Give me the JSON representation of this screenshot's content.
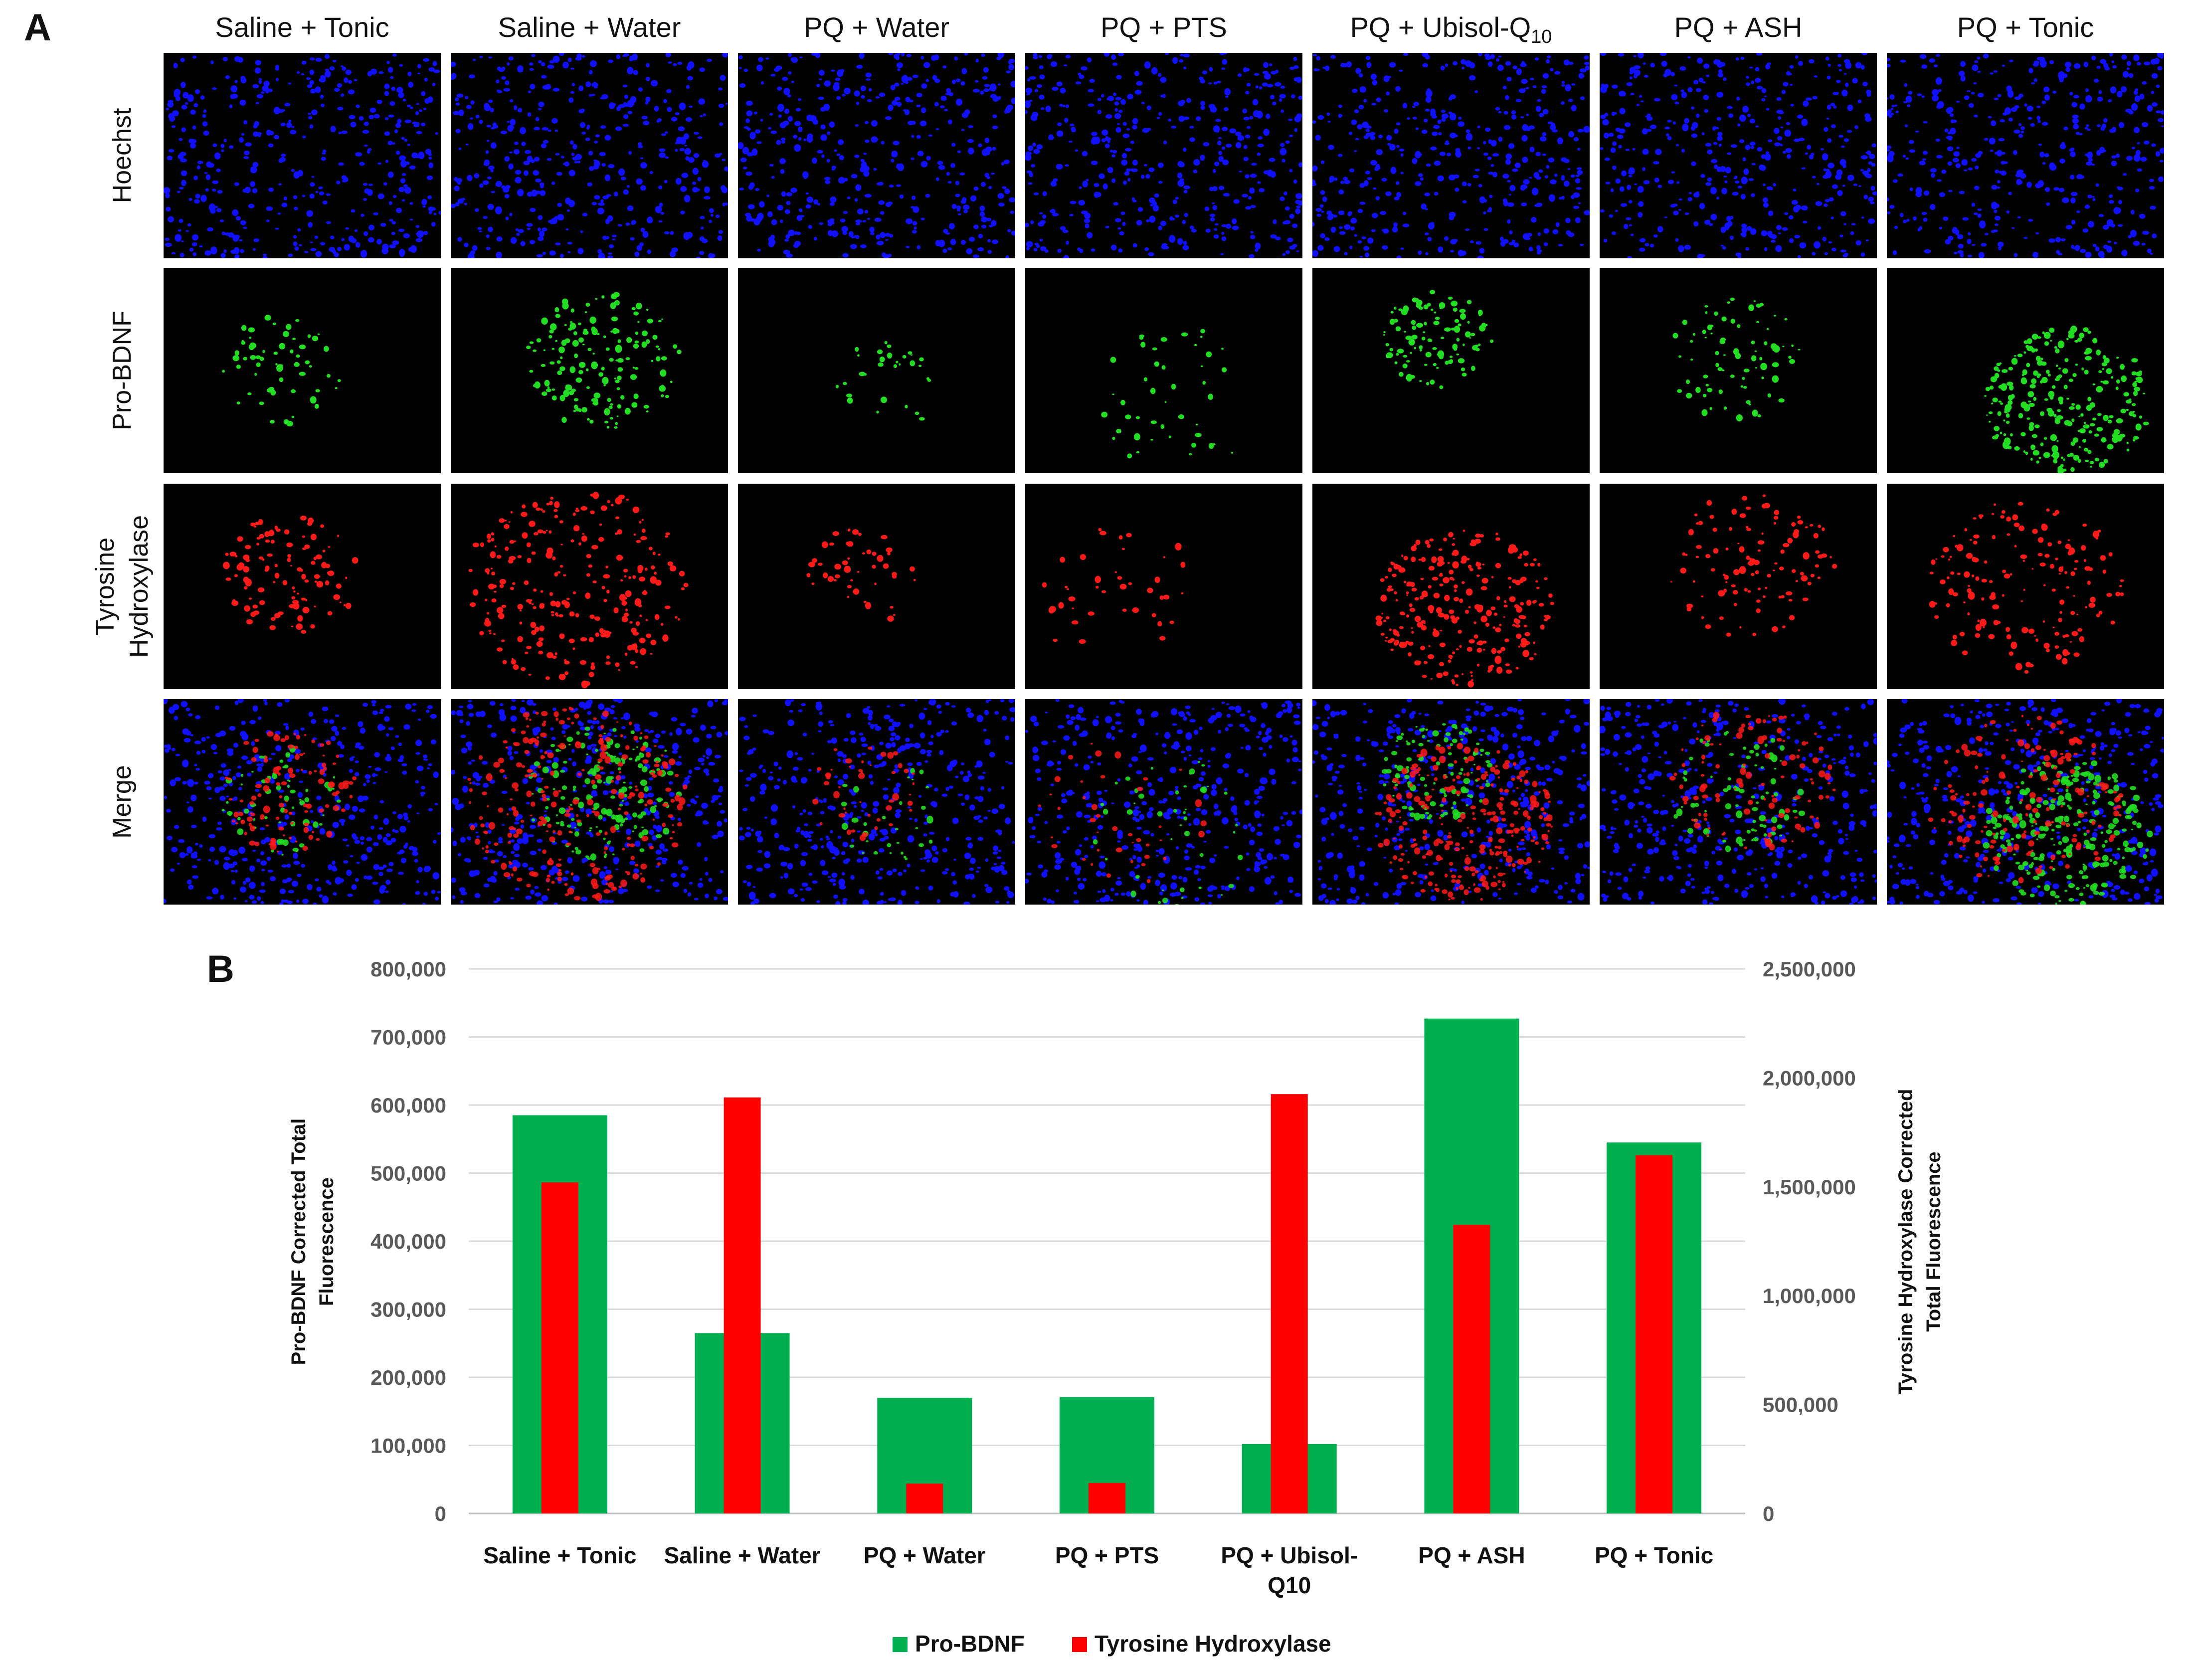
{
  "panels": {
    "a_label": "A",
    "b_label": "B"
  },
  "microscopy": {
    "columns": [
      "Saline + Tonic",
      "Saline + Water",
      "PQ + Water",
      "PQ + PTS",
      "PQ + Ubisol-Q",
      "PQ + ASH",
      "PQ + Tonic"
    ],
    "ubisol_subscript": "10",
    "rows": [
      "Hoechst",
      "Pro-BDNF",
      "Tyrosine\nHydroxylase",
      "Merge"
    ],
    "stain_colors": {
      "Hoechst": "#1010ff",
      "Pro-BDNF": "#22dd22",
      "Tyrosine Hydroxylase": "#ff1a1a"
    }
  },
  "chart_data": {
    "type": "bar",
    "categories": [
      "Saline + Tonic",
      "Saline + Water",
      "PQ + Water",
      "PQ + PTS",
      "PQ + Ubisol-Q10",
      "PQ + ASH",
      "PQ + Tonic"
    ],
    "category_lines": [
      [
        "Saline + Tonic"
      ],
      [
        "Saline + Water"
      ],
      [
        "PQ + Water"
      ],
      [
        "PQ + PTS"
      ],
      [
        "PQ + Ubisol-",
        "Q10"
      ],
      [
        "PQ + ASH"
      ],
      [
        "PQ + Tonic"
      ]
    ],
    "series": [
      {
        "name": "Pro-BDNF",
        "axis": "left",
        "color": "#00b050",
        "values": [
          585000,
          265000,
          170000,
          171000,
          102000,
          727000,
          545000
        ]
      },
      {
        "name": "Tyrosine Hydroxylase",
        "axis": "right",
        "color": "#ff0000",
        "values": [
          1520000,
          1910000,
          137000,
          140000,
          1925000,
          1325000,
          1645000
        ]
      }
    ],
    "left_axis": {
      "label_lines": [
        "Pro-BDNF Corrected Total",
        "Fluorescence"
      ],
      "ylim": [
        0,
        800000
      ],
      "ticks": [
        "0",
        "100,000",
        "200,000",
        "300,000",
        "400,000",
        "500,000",
        "600,000",
        "700,000",
        "800,000"
      ]
    },
    "right_axis": {
      "label_lines": [
        "Tyrosine Hydroxylase Corrected",
        "Total Fluorescence"
      ],
      "ylim": [
        0,
        2500000
      ],
      "ticks": [
        "0",
        "500,000",
        "1,000,000",
        "1,500,000",
        "2,000,000",
        "2,500,000"
      ]
    },
    "grid": true,
    "legend_position": "bottom"
  }
}
